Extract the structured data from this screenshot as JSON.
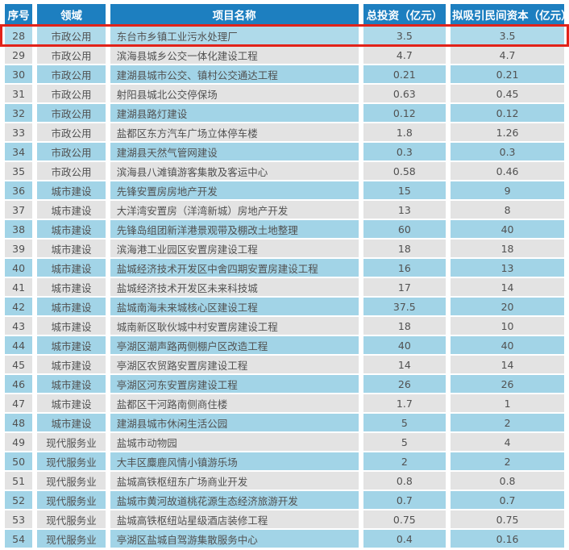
{
  "colors": {
    "header_bg": "#1d7fc0",
    "row_blue": "#a2d4e7",
    "row_gray": "#e3e3e3",
    "row_highlight_bg": "#afdaea",
    "highlight_border": "#e2231a",
    "header_text": "#ffffff",
    "cell_text": "#515151"
  },
  "chart_data": {
    "type": "table",
    "columns": [
      "序号",
      "领域",
      "项目名称",
      "总投资（亿元）",
      "拟吸引民间资本（亿元）"
    ],
    "highlighted_row_number": "28",
    "rows": [
      {
        "index": "28",
        "field": "市政公用",
        "name": "东台市乡镇工业污水处理厂",
        "investment": "3.5",
        "private_capital": "3.5",
        "highlighted": true
      },
      {
        "index": "29",
        "field": "市政公用",
        "name": "滨海县城乡公交一体化建设工程",
        "investment": "4.7",
        "private_capital": "4.7",
        "highlighted": false
      },
      {
        "index": "30",
        "field": "市政公用",
        "name": "建湖县城市公交、镇村公交通达工程",
        "investment": "0.21",
        "private_capital": "0.21",
        "highlighted": false
      },
      {
        "index": "31",
        "field": "市政公用",
        "name": "射阳县城北公交停保场",
        "investment": "0.63",
        "private_capital": "0.45",
        "highlighted": false
      },
      {
        "index": "32",
        "field": "市政公用",
        "name": "建湖县路灯建设",
        "investment": "0.12",
        "private_capital": "0.12",
        "highlighted": false
      },
      {
        "index": "33",
        "field": "市政公用",
        "name": "盐都区东方汽车广场立体停车楼",
        "investment": "1.8",
        "private_capital": "1.26",
        "highlighted": false
      },
      {
        "index": "34",
        "field": "市政公用",
        "name": "建湖县天然气管网建设",
        "investment": "0.3",
        "private_capital": "0.3",
        "highlighted": false
      },
      {
        "index": "35",
        "field": "市政公用",
        "name": "滨海县八滩镇游客集散及客运中心",
        "investment": "0.58",
        "private_capital": "0.46",
        "highlighted": false
      },
      {
        "index": "36",
        "field": "城市建设",
        "name": "先锋安置房房地产开发",
        "investment": "15",
        "private_capital": "9",
        "highlighted": false
      },
      {
        "index": "37",
        "field": "城市建设",
        "name": "大洋湾安置房（洋湾新城）房地产开发",
        "investment": "13",
        "private_capital": "8",
        "highlighted": false
      },
      {
        "index": "38",
        "field": "城市建设",
        "name": "先锋岛组团新洋港景观带及棚改土地整理",
        "investment": "60",
        "private_capital": "40",
        "highlighted": false
      },
      {
        "index": "39",
        "field": "城市建设",
        "name": "滨海港工业园区安置房建设工程",
        "investment": "18",
        "private_capital": "18",
        "highlighted": false
      },
      {
        "index": "40",
        "field": "城市建设",
        "name": "盐城经济技术开发区中舍四期安置房建设工程",
        "investment": "16",
        "private_capital": "13",
        "highlighted": false
      },
      {
        "index": "41",
        "field": "城市建设",
        "name": "盐城经济技术开发区未来科技城",
        "investment": "17",
        "private_capital": "14",
        "highlighted": false
      },
      {
        "index": "42",
        "field": "城市建设",
        "name": "盐城南海未来城核心区建设工程",
        "investment": "37.5",
        "private_capital": "20",
        "highlighted": false
      },
      {
        "index": "43",
        "field": "城市建设",
        "name": "城南新区耿伙城中村安置房建设工程",
        "investment": "18",
        "private_capital": "10",
        "highlighted": false
      },
      {
        "index": "44",
        "field": "城市建设",
        "name": "亭湖区潮声路两侧棚户区改造工程",
        "investment": "40",
        "private_capital": "40",
        "highlighted": false
      },
      {
        "index": "45",
        "field": "城市建设",
        "name": "亭湖区农贸路安置房建设工程",
        "investment": "14",
        "private_capital": "14",
        "highlighted": false
      },
      {
        "index": "46",
        "field": "城市建设",
        "name": "亭湖区河东安置房建设工程",
        "investment": "26",
        "private_capital": "26",
        "highlighted": false
      },
      {
        "index": "47",
        "field": "城市建设",
        "name": "盐都区干河路南侧商住楼",
        "investment": "1.7",
        "private_capital": "1",
        "highlighted": false
      },
      {
        "index": "48",
        "field": "城市建设",
        "name": "建湖县城市休闲生活公园",
        "investment": "5",
        "private_capital": "2",
        "highlighted": false
      },
      {
        "index": "49",
        "field": "现代服务业",
        "name": "盐城市动物园",
        "investment": "5",
        "private_capital": "4",
        "highlighted": false
      },
      {
        "index": "50",
        "field": "现代服务业",
        "name": "大丰区麋鹿风情小镇游乐场",
        "investment": "2",
        "private_capital": "2",
        "highlighted": false
      },
      {
        "index": "51",
        "field": "现代服务业",
        "name": "盐城高铁枢纽东广场商业开发",
        "investment": "0.8",
        "private_capital": "0.8",
        "highlighted": false
      },
      {
        "index": "52",
        "field": "现代服务业",
        "name": "盐城市黄河故道桃花源生态经济旅游开发",
        "investment": "0.7",
        "private_capital": "0.7",
        "highlighted": false
      },
      {
        "index": "53",
        "field": "现代服务业",
        "name": "盐城高铁枢纽站星级酒店装修工程",
        "investment": "0.75",
        "private_capital": "0.75",
        "highlighted": false
      },
      {
        "index": "54",
        "field": "现代服务业",
        "name": "亭湖区盐城自驾游集散服务中心",
        "investment": "0.4",
        "private_capital": "0.16",
        "highlighted": false
      }
    ]
  }
}
